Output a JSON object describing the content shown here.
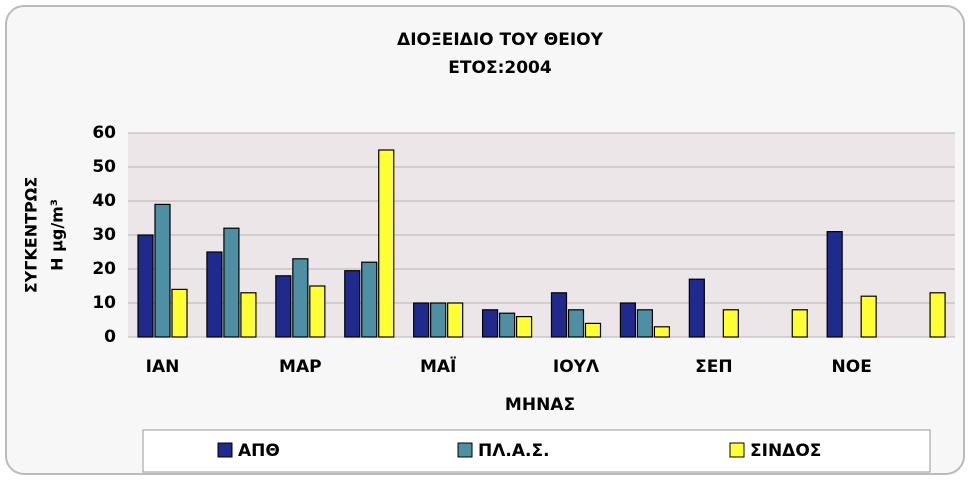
{
  "chart_data": {
    "type": "bar",
    "title": "ΔΙΟΞΕΙΔΙΟ ΤΟΥ ΘΕΙΟΥ",
    "subtitle": "ΕΤΟΣ:2004",
    "x_label": "ΜΗΝΑΣ",
    "y_label": [
      "ΣΥΓΚΕΝΤΡΩΣ",
      "Η μg/m³"
    ],
    "categories": [
      "ΙΑΝ",
      null,
      "ΜΑΡ",
      null,
      "ΜΑΪ",
      null,
      "ΙΟΥΛ",
      null,
      "ΣΕΠ",
      null,
      "ΝΟΕ",
      null
    ],
    "series": [
      {
        "name": "ΑΠΘ",
        "color": "#1f2a8c",
        "values": [
          30,
          25,
          18,
          19.5,
          10,
          8,
          13,
          10,
          17,
          null,
          31,
          null
        ]
      },
      {
        "name": "ΠΛ.Α.Σ.",
        "color": "#4f8fa3",
        "values": [
          39,
          32,
          23,
          22,
          10,
          7,
          8,
          8,
          null,
          null,
          null,
          null
        ]
      },
      {
        "name": "ΣΙΝΔΟΣ",
        "color": "#ffff33",
        "values": [
          14,
          13,
          15,
          55,
          10,
          6,
          4,
          3,
          8,
          8,
          12,
          13
        ]
      }
    ],
    "ylim": [
      0,
      60
    ],
    "yticks": [
      0,
      10,
      20,
      30,
      40,
      50,
      60
    ],
    "grid": true,
    "legend": "bottom"
  }
}
